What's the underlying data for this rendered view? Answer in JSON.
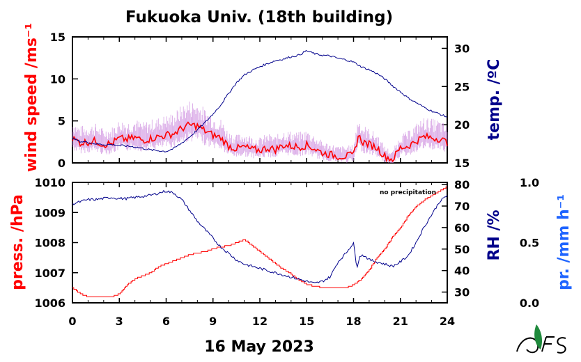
{
  "chart_data": {
    "type": "line",
    "title": "Fukuoka Univ. (18th building)",
    "xlabel": "16 May 2023",
    "x_ticks": [
      "0",
      "3",
      "6",
      "9",
      "12",
      "15",
      "18",
      "21",
      "24"
    ],
    "xlim": [
      0,
      24
    ],
    "note": "no precipitation",
    "colors": {
      "wind": "#ff0000",
      "gust": "#cc88dd",
      "temp": "#00008b",
      "press": "#ff0000",
      "rh": "#00008b",
      "precip": "#1e64ff"
    },
    "panels": [
      {
        "name": "top",
        "y_left": {
          "label": "wind speed /ms⁻¹",
          "ylim": [
            0,
            15
          ],
          "ticks": [
            "0",
            "5",
            "10",
            "15"
          ]
        },
        "y_right": {
          "label": "temp. /ºC",
          "ylim": [
            15,
            31.5
          ],
          "ticks": [
            "15",
            "20",
            "25",
            "30"
          ]
        },
        "series": [
          {
            "axis": "left",
            "color": "#ff0000",
            "x": [
              0,
              0.5,
              1,
              1.5,
              2,
              2.5,
              3,
              3.5,
              4,
              4.5,
              5,
              5.5,
              6,
              6.5,
              7,
              7.5,
              8,
              8.5,
              9,
              9.5,
              10,
              10.5,
              11,
              11.5,
              12,
              12.5,
              13,
              13.5,
              14,
              14.5,
              15,
              15.5,
              16,
              16.5,
              17,
              17.5,
              18,
              18.3,
              18.6,
              19,
              19.5,
              20,
              20.5,
              21,
              21.5,
              22,
              22.5,
              23,
              23.5,
              24
            ],
            "values": [
              2.9,
              2.4,
              2.5,
              2.6,
              2.2,
              2.3,
              2.9,
              2.8,
              3.0,
              2.7,
              2.9,
              3.1,
              3.3,
              3.5,
              4.1,
              4.5,
              4.4,
              3.8,
              3.3,
              3.0,
              2.0,
              1.7,
              1.9,
              1.6,
              1.5,
              1.8,
              1.6,
              2.1,
              2.0,
              1.9,
              2.1,
              1.7,
              1.2,
              1.0,
              0.8,
              0.8,
              0.9,
              3.2,
              2.5,
              2.2,
              1.8,
              0.8,
              0.4,
              1.8,
              2.0,
              2.6,
              3.1,
              3.0,
              2.9,
              2.4
            ]
          },
          {
            "axis": "right",
            "color": "#00008b",
            "x": [
              0,
              0.5,
              1,
              1.5,
              2,
              2.5,
              3,
              3.5,
              4,
              4.5,
              5,
              5.5,
              6,
              6.5,
              7,
              7.5,
              8,
              8.5,
              9,
              9.5,
              10,
              10.5,
              11,
              11.5,
              12,
              12.5,
              13,
              13.5,
              14,
              14.5,
              15,
              15.5,
              16,
              16.5,
              17,
              17.5,
              18,
              18.5,
              19,
              19.5,
              20,
              20.5,
              21,
              21.5,
              22,
              22.5,
              23,
              23.5,
              24
            ],
            "values": [
              18.2,
              17.8,
              17.7,
              17.5,
              17.4,
              17.4,
              17.3,
              17.2,
              17.1,
              16.9,
              16.7,
              16.6,
              16.5,
              16.9,
              17.6,
              18.4,
              19.3,
              20.3,
              21.4,
              22.6,
              24.1,
              25.5,
              26.5,
              27.1,
              27.6,
              28.0,
              28.4,
              28.6,
              28.9,
              29.1,
              29.7,
              29.3,
              29.1,
              29.0,
              28.7,
              28.5,
              28.2,
              27.6,
              27.2,
              26.7,
              26.0,
              25.1,
              24.3,
              23.5,
              22.9,
              22.3,
              21.8,
              21.4,
              21.0
            ]
          }
        ]
      },
      {
        "name": "bottom",
        "y_left": {
          "label": "press. /hPa",
          "ylim": [
            1006,
            1010
          ],
          "ticks": [
            "1006",
            "1007",
            "1008",
            "1009",
            "1010"
          ]
        },
        "y_right": {
          "label": "RH /%",
          "ylim": [
            25,
            81
          ],
          "ticks": [
            "30",
            "40",
            "50",
            "60",
            "70",
            "80"
          ]
        },
        "y_far_right": {
          "label": "pr. /mm h⁻¹",
          "ylim": [
            0,
            1
          ],
          "ticks": [
            "0.0",
            "0.5",
            "1.0"
          ]
        },
        "series": [
          {
            "axis": "left",
            "color": "#ff0000",
            "x": [
              0,
              0.5,
              1,
              1.5,
              2,
              2.5,
              3,
              3.5,
              4,
              4.5,
              5,
              5.5,
              6,
              6.5,
              7,
              7.5,
              8,
              8.5,
              9,
              9.5,
              10,
              10.5,
              11,
              11.5,
              12,
              12.5,
              13,
              13.5,
              14,
              14.5,
              15,
              15.5,
              16,
              16.5,
              17,
              17.5,
              18,
              18.5,
              19,
              19.5,
              20,
              20.5,
              21,
              21.5,
              22,
              22.5,
              23,
              23.5,
              24
            ],
            "values": [
              1006.5,
              1006.3,
              1006.2,
              1006.2,
              1006.2,
              1006.2,
              1006.3,
              1006.6,
              1006.8,
              1006.9,
              1007.0,
              1007.2,
              1007.3,
              1007.4,
              1007.5,
              1007.6,
              1007.65,
              1007.7,
              1007.8,
              1007.85,
              1007.9,
              1008.0,
              1008.1,
              1007.9,
              1007.7,
              1007.5,
              1007.3,
              1007.1,
              1006.95,
              1006.75,
              1006.6,
              1006.55,
              1006.5,
              1006.5,
              1006.5,
              1006.5,
              1006.6,
              1006.8,
              1007.1,
              1007.5,
              1007.8,
              1008.2,
              1008.5,
              1008.9,
              1009.2,
              1009.4,
              1009.55,
              1009.7,
              1009.85
            ]
          },
          {
            "axis": "right",
            "color": "#00008b",
            "x": [
              0,
              0.5,
              1,
              1.5,
              2,
              2.5,
              3,
              3.5,
              4,
              4.5,
              5,
              5.5,
              6,
              6.5,
              7,
              7.5,
              8,
              8.5,
              9,
              9.5,
              10,
              10.5,
              11,
              11.5,
              12,
              12.5,
              13,
              13.5,
              14,
              14.5,
              15,
              15.5,
              16,
              16.5,
              17,
              17.5,
              18,
              18.2,
              18.4,
              18.7,
              19,
              19.5,
              20,
              20.5,
              21,
              21.5,
              22,
              22.5,
              23,
              23.5,
              24
            ],
            "values": [
              71,
              72,
              73,
              73,
              73.5,
              74,
              73.5,
              73.5,
              74,
              74.5,
              75,
              76,
              77,
              76,
              73,
              68,
              63,
              59,
              55,
              51,
              48,
              45,
              43,
              42,
              41,
              40,
              39,
              38,
              37,
              36,
              35,
              34,
              35,
              37,
              44,
              48,
              53,
              41,
              47,
              47,
              45,
              44,
              43,
              42,
              44,
              47,
              53,
              60,
              66,
              72,
              75
            ]
          }
        ]
      }
    ]
  }
}
